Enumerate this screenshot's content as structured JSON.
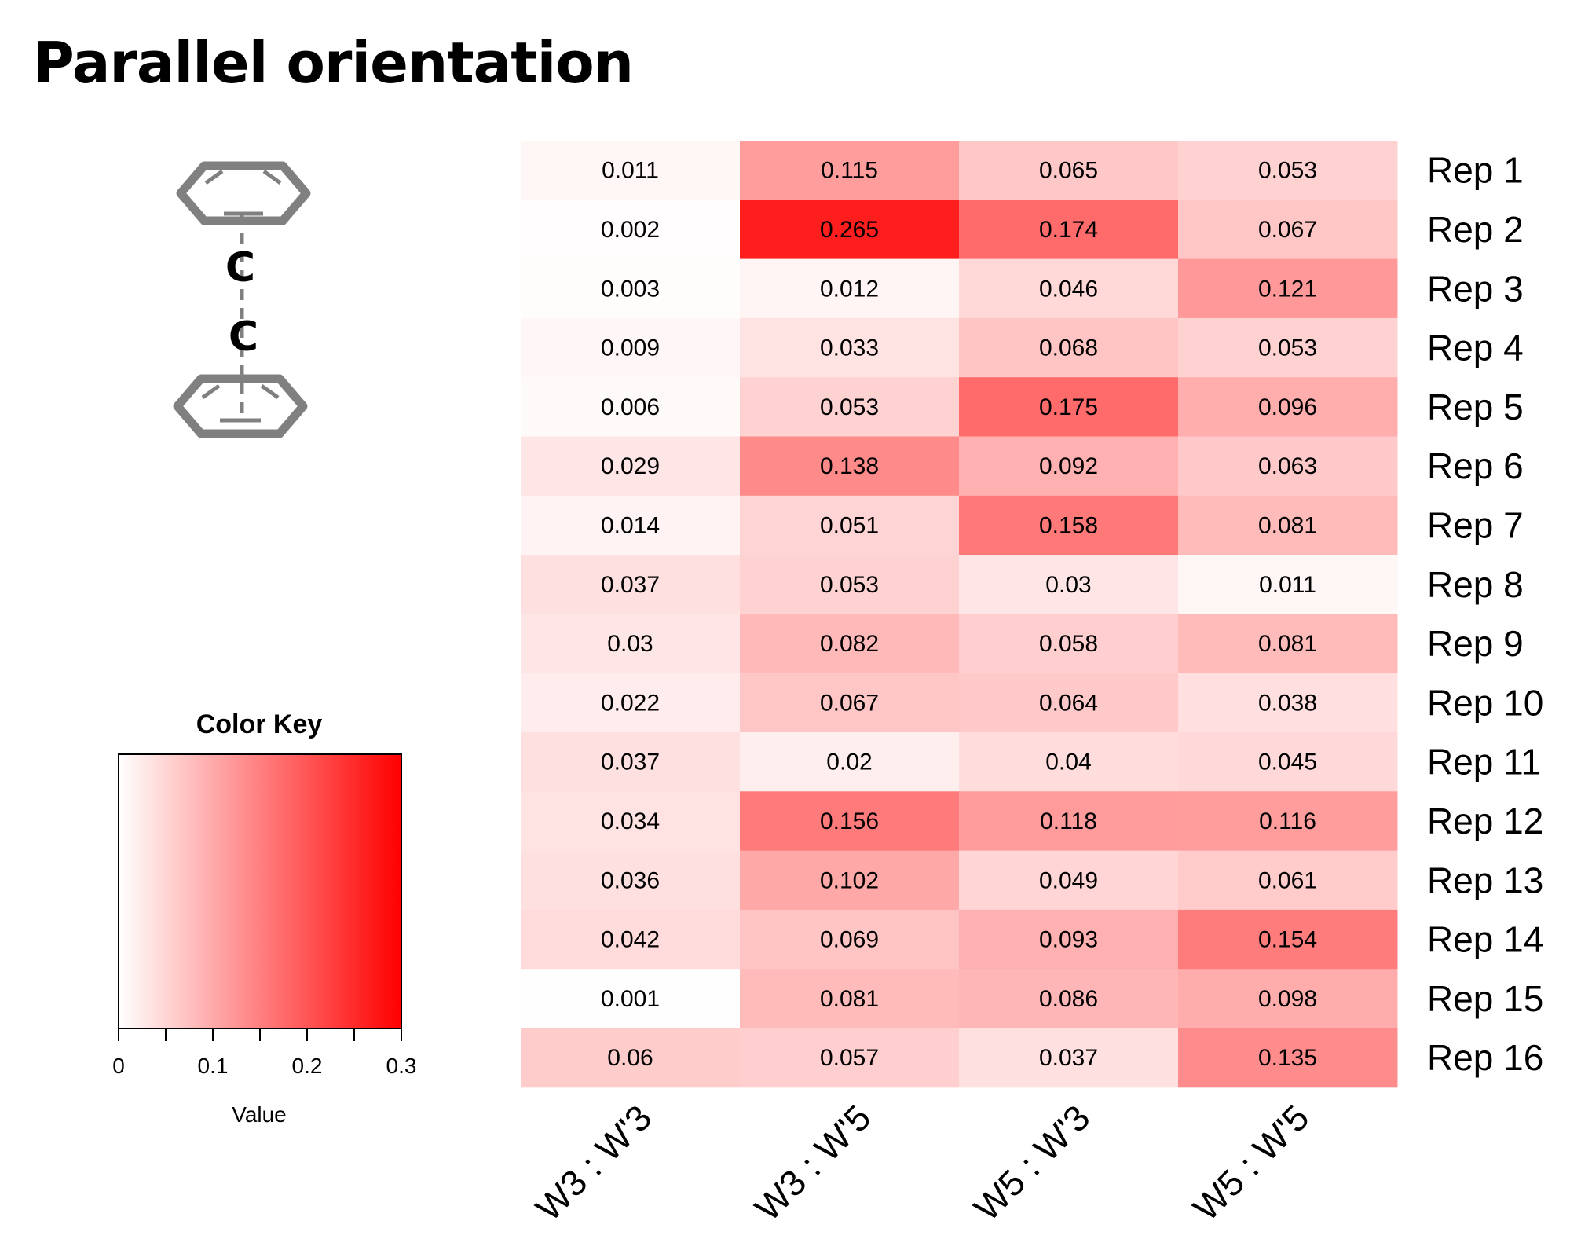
{
  "title": "Parallel orientation",
  "molecule": {
    "icon": "stacked-benzene-rings-icon",
    "atom_top": "C",
    "atom_bottom": "C",
    "stroke_color": "#808080"
  },
  "chart_data": {
    "type": "heatmap",
    "title": "Parallel orientation",
    "columns": [
      "W3 : W'3",
      "W3 : W'5",
      "W5 : W'3",
      "W5 : W'5"
    ],
    "rows": [
      "Rep 1",
      "Rep 2",
      "Rep 3",
      "Rep 4",
      "Rep 5",
      "Rep 6",
      "Rep 7",
      "Rep 8",
      "Rep 9",
      "Rep 10",
      "Rep 11",
      "Rep 12",
      "Rep 13",
      "Rep 14",
      "Rep 15",
      "Rep 16"
    ],
    "values": [
      [
        0.011,
        0.115,
        0.065,
        0.053
      ],
      [
        0.002,
        0.265,
        0.174,
        0.067
      ],
      [
        0.003,
        0.012,
        0.046,
        0.121
      ],
      [
        0.009,
        0.033,
        0.068,
        0.053
      ],
      [
        0.006,
        0.053,
        0.175,
        0.096
      ],
      [
        0.029,
        0.138,
        0.092,
        0.063
      ],
      [
        0.014,
        0.051,
        0.158,
        0.081
      ],
      [
        0.037,
        0.053,
        0.03,
        0.011
      ],
      [
        0.03,
        0.082,
        0.058,
        0.081
      ],
      [
        0.022,
        0.067,
        0.064,
        0.038
      ],
      [
        0.037,
        0.02,
        0.04,
        0.045
      ],
      [
        0.034,
        0.156,
        0.118,
        0.116
      ],
      [
        0.036,
        0.102,
        0.049,
        0.061
      ],
      [
        0.042,
        0.069,
        0.093,
        0.154
      ],
      [
        0.001,
        0.081,
        0.086,
        0.098
      ],
      [
        0.06,
        0.057,
        0.037,
        0.135
      ]
    ],
    "value_range": [
      0,
      0.3
    ],
    "color_low": "#ffffff",
    "color_high": "#ff0000",
    "color_key": {
      "title": "Color Key",
      "xlabel": "Value",
      "ticks": [
        "0",
        "0.1",
        "0.2",
        "0.3"
      ],
      "tick_values": [
        0,
        0.1,
        0.2,
        0.3
      ],
      "minor_tick_values": [
        0.05,
        0.15,
        0.25
      ],
      "range": [
        0,
        0.3
      ]
    }
  }
}
